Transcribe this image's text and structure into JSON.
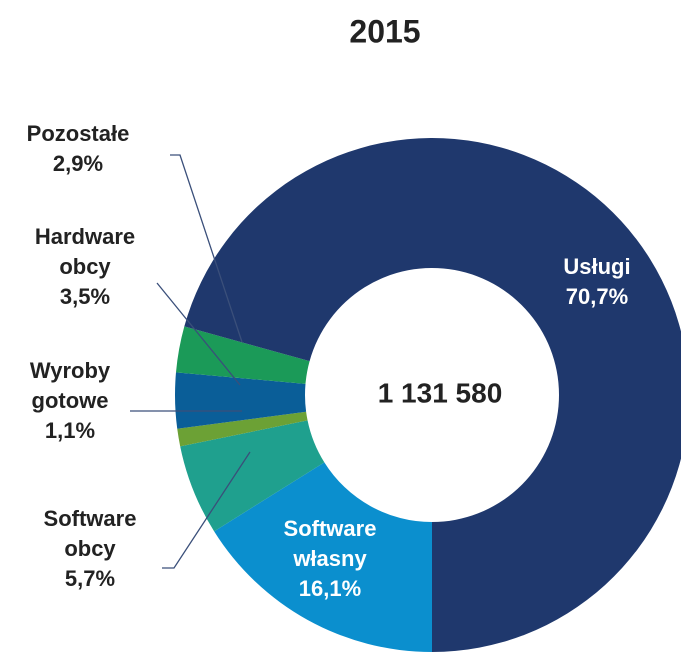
{
  "chart_data": {
    "type": "donut",
    "title": "2015",
    "center_label": "1 131 580",
    "categories": [
      "Software własny",
      "Software obcy",
      "Wyroby gotowe",
      "Hardware obcy",
      "Pozostałe",
      "Usługi"
    ],
    "values": [
      16.1,
      5.7,
      1.1,
      3.5,
      2.9,
      70.7
    ],
    "value_labels": [
      "16,1%",
      "5,7%",
      "1,1%",
      "3,5%",
      "2,9%",
      "70,7%"
    ],
    "colors": [
      "#0b8fce",
      "#1fa08e",
      "#6ca135",
      "#0a5e98",
      "#1b9a58",
      "#1f386d"
    ]
  }
}
